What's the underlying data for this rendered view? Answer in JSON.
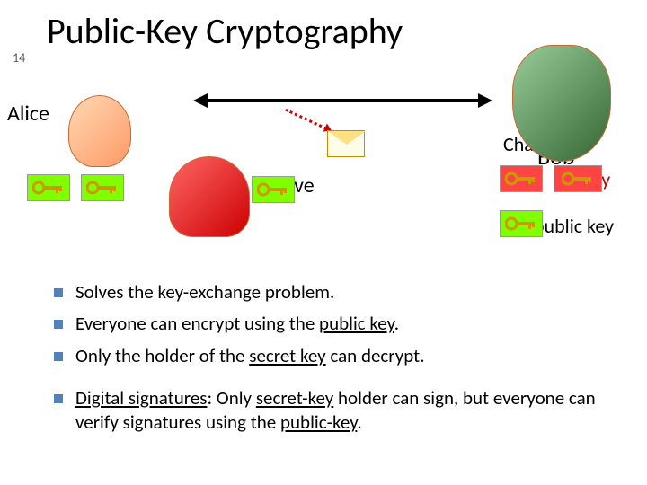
{
  "slide_number": "14",
  "title": "Public-Key Cryptography",
  "labels": {
    "alice": "Alice",
    "eve": "Eve",
    "charlie": "Charlie",
    "bob": "Bob",
    "secret_key_suffix": "et key",
    "public_key": "public key"
  },
  "key_colors": {
    "public_key_bg": "#7fff00",
    "secret_key_bg": "#ff4444",
    "key_shaft": "#cc9900",
    "key_shadow": "#666600"
  },
  "bullets": [
    {
      "parts": [
        {
          "text": "Solves the key-exchange problem.",
          "u": false
        }
      ]
    },
    {
      "parts": [
        {
          "text": "Everyone can encrypt using the ",
          "u": false
        },
        {
          "text": "public key",
          "u": true
        },
        {
          "text": ".",
          "u": false
        }
      ]
    },
    {
      "parts": [
        {
          "text": "Only the holder of the ",
          "u": false
        },
        {
          "text": "secret key",
          "u": true
        },
        {
          "text": " can decrypt.",
          "u": false
        }
      ]
    },
    {
      "gap": true,
      "parts": [
        {
          "text": "Digital signatures",
          "u": true
        },
        {
          "text": ": Only ",
          "u": false
        },
        {
          "text": "secret-key",
          "u": true
        },
        {
          "text": " holder can sign, but everyone can verify signatures using the ",
          "u": false
        },
        {
          "text": "public-key",
          "u": true
        },
        {
          "text": ".",
          "u": false
        }
      ]
    }
  ],
  "styling": {
    "background": "#ffffff",
    "title_fontsize": 40,
    "label_fontsize": 24,
    "bullet_fontsize": 21,
    "bullet_marker_color": "#4f81bd",
    "slide_number_color": "#595959",
    "secret_key_text_color": "#c00000",
    "arrow_color": "#000000",
    "dotted_arrow_color": "#cc0000"
  }
}
